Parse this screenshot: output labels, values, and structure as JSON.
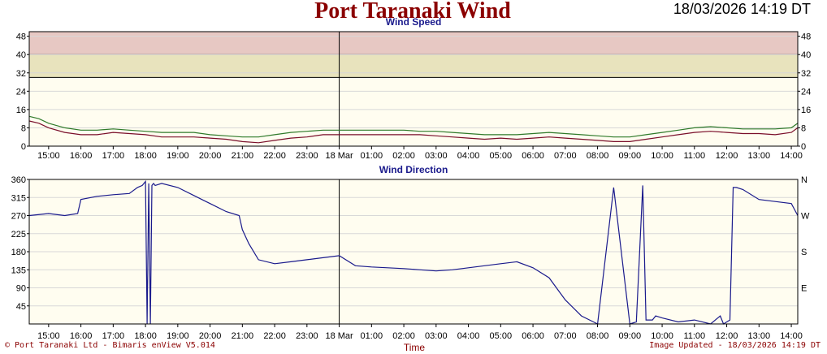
{
  "header": {
    "title": "Port Taranaki Wind",
    "timestamp": "18/03/2026 14:19 DT"
  },
  "footer": {
    "left": "© Port Taranaki Ltd - Bimaris enView V5.014",
    "center": "Time",
    "right": "Image Updated - 18/03/2026 14:19 DT"
  },
  "colors": {
    "plot_bg": "#fffdf0",
    "band_red": "#e7c8c3",
    "band_yellow": "#e8e3bd",
    "speed_avg": "#7a0e2a",
    "speed_gust": "#2f7a2a",
    "direction": "#1a1a8c",
    "title": "#8b0000",
    "panel_title": "#1a1a8c"
  },
  "chart_data": [
    {
      "type": "line",
      "title": "Wind Speed",
      "x_tick_labels": [
        "15:00",
        "16:00",
        "17:00",
        "18:00",
        "19:00",
        "20:00",
        "21:00",
        "22:00",
        "23:00",
        "18 Mar",
        "01:00",
        "02:00",
        "03:00",
        "04:00",
        "05:00",
        "06:00",
        "07:00",
        "08:00",
        "09:00",
        "10:00",
        "11:00",
        "12:00",
        "13:00",
        "14:00"
      ],
      "xlim": [
        14.4,
        38.2
      ],
      "ylim": [
        0,
        50
      ],
      "y_ticks": [
        0,
        8,
        16,
        24,
        32,
        40,
        48
      ],
      "bands": [
        {
          "from": 40,
          "to": 50,
          "color": "#e7c8c3"
        },
        {
          "from": 30,
          "to": 40,
          "color": "#e8e3bd"
        }
      ],
      "day_marker_hour": 24,
      "series": [
        {
          "role": "average",
          "color": "#7a0e2a",
          "x": [
            14.4,
            14.7,
            15.0,
            15.5,
            16.0,
            16.5,
            17.0,
            17.5,
            18.0,
            18.5,
            19.0,
            19.5,
            20.0,
            20.5,
            21.0,
            21.5,
            22.0,
            22.5,
            23.0,
            23.5,
            24.0,
            24.5,
            25.0,
            25.5,
            26.0,
            26.5,
            27.0,
            27.5,
            28.0,
            28.5,
            29.0,
            29.5,
            30.0,
            30.5,
            31.0,
            31.5,
            32.0,
            32.5,
            33.0,
            33.5,
            34.0,
            34.5,
            35.0,
            35.5,
            36.0,
            36.5,
            37.0,
            37.5,
            38.0,
            38.2
          ],
          "y": [
            11,
            10,
            8,
            6,
            5,
            5,
            6,
            5.5,
            5,
            4,
            4,
            4,
            3.5,
            3,
            2,
            1.5,
            2.5,
            3.5,
            4,
            5,
            5,
            5,
            5,
            5,
            5,
            5,
            4.5,
            4,
            3.5,
            3,
            3.5,
            3,
            3.5,
            4,
            3.5,
            3,
            2.5,
            2,
            2,
            3,
            4,
            5,
            6,
            6.5,
            6,
            5.5,
            5.5,
            5,
            6,
            8
          ]
        },
        {
          "role": "gust",
          "color": "#2f7a2a",
          "x": [
            14.4,
            14.7,
            15.0,
            15.5,
            16.0,
            16.5,
            17.0,
            17.5,
            18.0,
            18.5,
            19.0,
            19.5,
            20.0,
            20.5,
            21.0,
            21.5,
            22.0,
            22.5,
            23.0,
            23.5,
            24.0,
            24.5,
            25.0,
            25.5,
            26.0,
            26.5,
            27.0,
            27.5,
            28.0,
            28.5,
            29.0,
            29.5,
            30.0,
            30.5,
            31.0,
            31.5,
            32.0,
            32.5,
            33.0,
            33.5,
            34.0,
            34.5,
            35.0,
            35.5,
            36.0,
            36.5,
            37.0,
            37.5,
            38.0,
            38.2
          ],
          "y": [
            13,
            12,
            10,
            8,
            7,
            7,
            7.5,
            7,
            6.5,
            6,
            6,
            6,
            5,
            4.5,
            4,
            4,
            5,
            6,
            6.5,
            7,
            7,
            7,
            7,
            7,
            7,
            6.5,
            6.5,
            6,
            5.5,
            5,
            5,
            5,
            5.5,
            6,
            5.5,
            5,
            4.5,
            4,
            4,
            5,
            6,
            7,
            8,
            8.5,
            8,
            7.5,
            7.5,
            7.5,
            8,
            10
          ]
        }
      ]
    },
    {
      "type": "line",
      "title": "Wind Direction",
      "x_tick_labels": [
        "15:00",
        "16:00",
        "17:00",
        "18:00",
        "19:00",
        "20:00",
        "21:00",
        "22:00",
        "23:00",
        "18 Mar",
        "01:00",
        "02:00",
        "03:00",
        "04:00",
        "05:00",
        "06:00",
        "07:00",
        "08:00",
        "09:00",
        "10:00",
        "11:00",
        "12:00",
        "13:00",
        "14:00"
      ],
      "xlabel": "Time",
      "xlim": [
        14.4,
        38.2
      ],
      "ylim": [
        0,
        360
      ],
      "y_ticks": [
        45,
        90,
        135,
        180,
        225,
        270,
        315,
        360
      ],
      "compass_labels": [
        {
          "value": 360,
          "label": "N"
        },
        {
          "value": 270,
          "label": "W"
        },
        {
          "value": 180,
          "label": "S"
        },
        {
          "value": 90,
          "label": "E"
        }
      ],
      "day_marker_hour": 24,
      "series": [
        {
          "role": "direction",
          "color": "#1a1a8c",
          "x": [
            14.4,
            15.0,
            15.5,
            15.9,
            16.0,
            16.5,
            17.0,
            17.5,
            17.75,
            17.9,
            18.0,
            18.05,
            18.1,
            18.15,
            18.2,
            18.25,
            18.3,
            18.5,
            19.0,
            19.5,
            20.0,
            20.5,
            20.9,
            21.0,
            21.2,
            21.5,
            22.0,
            22.5,
            23.0,
            23.5,
            24.0,
            24.5,
            25.0,
            25.5,
            26.0,
            26.5,
            27.0,
            27.5,
            28.0,
            28.5,
            29.0,
            29.5,
            30.0,
            30.5,
            31.0,
            31.5,
            32.0,
            32.5,
            33.0,
            33.2,
            33.4,
            33.5,
            33.7,
            33.8,
            34.0,
            34.5,
            35.0,
            35.5,
            35.8,
            35.9,
            36.0,
            36.1,
            36.2,
            36.3,
            36.5,
            37.0,
            37.5,
            38.0,
            38.2
          ],
          "y": [
            270,
            275,
            270,
            275,
            310,
            318,
            322,
            325,
            340,
            345,
            355,
            0,
            350,
            0,
            345,
            350,
            345,
            350,
            340,
            320,
            300,
            280,
            270,
            235,
            200,
            160,
            150,
            155,
            160,
            165,
            170,
            145,
            142,
            140,
            138,
            135,
            132,
            135,
            140,
            145,
            150,
            155,
            140,
            115,
            60,
            20,
            0,
            340,
            0,
            5,
            345,
            10,
            10,
            20,
            15,
            5,
            10,
            0,
            20,
            0,
            5,
            10,
            340,
            340,
            335,
            310,
            305,
            300,
            270
          ]
        }
      ]
    }
  ]
}
